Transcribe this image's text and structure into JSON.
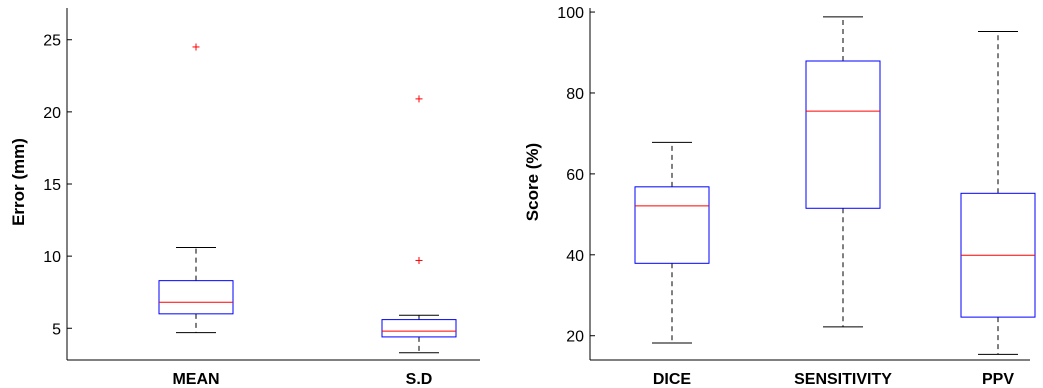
{
  "chart_data": [
    {
      "type": "boxplot",
      "title": "",
      "xlabel": "",
      "ylabel": "Error (mm)",
      "ylim": [
        2.8,
        27.2
      ],
      "yticks": [
        5,
        10,
        15,
        20,
        25
      ],
      "categories": [
        "MEAN",
        "S.D"
      ],
      "boxes": [
        {
          "min": 4.7,
          "q1": 6.0,
          "median": 6.8,
          "q3": 8.3,
          "max": 10.6,
          "outliers": [
            24.5
          ]
        },
        {
          "min": 3.3,
          "q1": 4.4,
          "median": 4.8,
          "q3": 5.6,
          "max": 5.9,
          "outliers": [
            9.7,
            20.9
          ]
        }
      ],
      "colors": {
        "box": "#0000ff",
        "median": "#ff0000",
        "whisker": "#000000",
        "outlier": "#ff0000"
      }
    },
    {
      "type": "boxplot",
      "title": "",
      "xlabel": "",
      "ylabel": "Score (%)",
      "ylim": [
        14,
        101
      ],
      "yticks": [
        20,
        40,
        60,
        80,
        100
      ],
      "categories": [
        "DICE",
        "SENSITIVITY",
        "PPV"
      ],
      "boxes": [
        {
          "min": 18.2,
          "q1": 37.9,
          "median": 52.1,
          "q3": 56.8,
          "max": 67.8,
          "outliers": []
        },
        {
          "min": 22.2,
          "q1": 51.5,
          "median": 75.5,
          "q3": 87.9,
          "max": 98.8,
          "outliers": []
        },
        {
          "min": 15.4,
          "q1": 24.6,
          "median": 39.9,
          "q3": 55.2,
          "max": 95.2,
          "outliers": []
        }
      ],
      "colors": {
        "box": "#0000ff",
        "median": "#ff0000",
        "whisker": "#000000",
        "outlier": "#ff0000"
      }
    }
  ]
}
